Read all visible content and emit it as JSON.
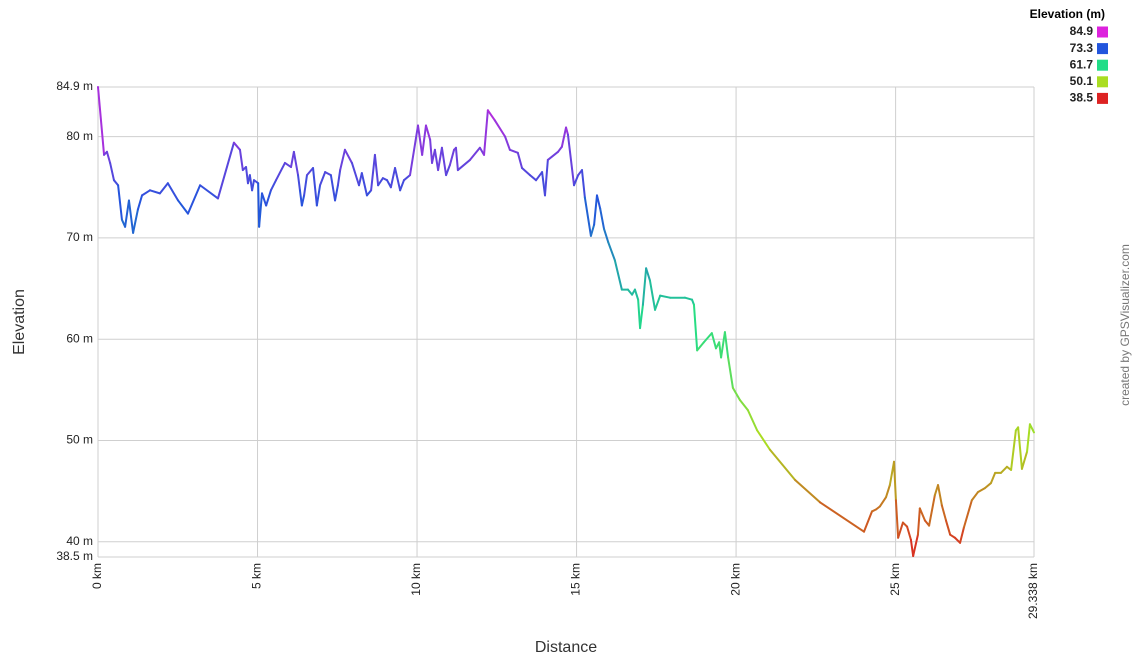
{
  "chart_data": {
    "type": "line",
    "x_label": "Distance",
    "y_label": "Elevation",
    "credit": "created by GPSVisualizer.com",
    "legend": {
      "title": "Elevation (m)",
      "values": [
        84.9,
        73.3,
        61.7,
        50.1,
        38.5
      ],
      "colors": [
        "#dd22dd",
        "#2255dd",
        "#22dd88",
        "#aadd22",
        "#dd2222"
      ]
    },
    "xlim": [
      0,
      29.338
    ],
    "ylim": [
      38.5,
      84.9
    ],
    "xticks": [
      {
        "value": 0,
        "label": "0 km"
      },
      {
        "value": 5,
        "label": "5 km"
      },
      {
        "value": 10,
        "label": "10 km"
      },
      {
        "value": 15,
        "label": "15 km"
      },
      {
        "value": 20,
        "label": "20 km"
      },
      {
        "value": 25,
        "label": "25 km"
      },
      {
        "value": 29.338,
        "label": "29.338 km"
      }
    ],
    "yticks": [
      {
        "value": 38.5,
        "label": "38.5 m"
      },
      {
        "value": 40,
        "label": "40 m"
      },
      {
        "value": 50,
        "label": "50 m"
      },
      {
        "value": 60,
        "label": "60 m"
      },
      {
        "value": 70,
        "label": "70 m"
      },
      {
        "value": 80,
        "label": "80 m"
      },
      {
        "value": 84.9,
        "label": "84.9 m"
      }
    ],
    "grid": true,
    "x": [
      0,
      0.19,
      0.28,
      0.38,
      0.5,
      0.63,
      0.75,
      0.85,
      0.97,
      1.1,
      1.25,
      1.38,
      1.63,
      1.94,
      2.19,
      2.51,
      2.82,
      3.2,
      3.76,
      4.26,
      4.45,
      4.54,
      4.64,
      4.7,
      4.76,
      4.83,
      4.89,
      5.02,
      5.05,
      5.14,
      5.27,
      5.42,
      5.58,
      5.86,
      6.05,
      6.14,
      6.27,
      6.33,
      6.39,
      6.46,
      6.55,
      6.74,
      6.86,
      6.96,
      7.12,
      7.3,
      7.43,
      7.52,
      7.59,
      7.74,
      7.96,
      8.18,
      8.27,
      8.43,
      8.56,
      8.68,
      8.78,
      8.93,
      9.06,
      9.18,
      9.31,
      9.47,
      9.59,
      9.78,
      10.03,
      10.16,
      10.28,
      10.41,
      10.47,
      10.56,
      10.66,
      10.78,
      10.91,
      11.03,
      11.16,
      11.22,
      11.28,
      11.66,
      11.97,
      12.1,
      12.22,
      12.44,
      12.76,
      12.91,
      13.16,
      13.29,
      13.54,
      13.73,
      13.92,
      14.01,
      14.1,
      14.42,
      14.54,
      14.67,
      14.73,
      14.92,
      15.05,
      15.17,
      15.26,
      15.45,
      15.55,
      15.64,
      15.74,
      15.86,
      15.99,
      16.2,
      16.42,
      16.61,
      16.74,
      16.83,
      16.93,
      16.99,
      17.08,
      17.18,
      17.3,
      17.46,
      17.62,
      17.93,
      18.4,
      18.62,
      18.68,
      18.78,
      18.99,
      19.24,
      19.37,
      19.47,
      19.53,
      19.65,
      19.75,
      19.9,
      20.12,
      20.37,
      20.66,
      21.06,
      21.85,
      22.63,
      24.01,
      24.26,
      24.39,
      24.51,
      24.7,
      24.82,
      24.95,
      25.01,
      25.08,
      25.23,
      25.36,
      25.48,
      25.55,
      25.7,
      25.76,
      25.92,
      26.05,
      26.23,
      26.33,
      26.45,
      26.58,
      26.71,
      26.86,
      27.02,
      27.14,
      27.39,
      27.58,
      27.8,
      27.99,
      28.12,
      28.3,
      28.49,
      28.62,
      28.77,
      28.84,
      28.96,
      29.12,
      29.21,
      29.338
    ],
    "series": [
      {
        "name": "Elevation",
        "values": [
          84.9,
          78.2,
          78.5,
          77.4,
          75.7,
          75.2,
          71.8,
          71.1,
          73.7,
          70.5,
          72.8,
          74.2,
          74.7,
          74.4,
          75.4,
          73.7,
          72.4,
          75.2,
          73.9,
          79.4,
          78.7,
          76.7,
          77.0,
          75.4,
          76.2,
          74.7,
          75.7,
          75.4,
          71.1,
          74.4,
          73.2,
          74.7,
          75.7,
          77.4,
          77.0,
          78.5,
          76.2,
          74.7,
          73.2,
          74.2,
          76.2,
          76.9,
          73.2,
          75.2,
          76.5,
          76.2,
          73.7,
          75.2,
          76.7,
          78.7,
          77.4,
          75.2,
          76.4,
          74.2,
          74.7,
          78.2,
          75.2,
          75.9,
          75.7,
          75.0,
          76.9,
          74.7,
          75.7,
          76.2,
          81.1,
          78.2,
          81.1,
          79.7,
          77.4,
          78.7,
          76.7,
          78.9,
          76.2,
          77.2,
          78.7,
          78.9,
          76.7,
          77.7,
          78.9,
          78.2,
          82.6,
          81.6,
          80.0,
          78.7,
          78.4,
          76.9,
          76.2,
          75.7,
          76.5,
          74.2,
          77.7,
          78.5,
          79.0,
          80.9,
          80.2,
          75.2,
          76.2,
          76.7,
          74.0,
          70.2,
          71.3,
          74.2,
          72.9,
          70.9,
          69.6,
          67.8,
          64.9,
          64.9,
          64.4,
          64.9,
          63.9,
          61.1,
          63.4,
          67.0,
          65.8,
          62.9,
          64.3,
          64.1,
          64.1,
          63.9,
          63.4,
          58.9,
          59.7,
          60.6,
          59.1,
          59.7,
          58.2,
          60.7,
          58.2,
          55.2,
          54.0,
          53.0,
          51.0,
          49.1,
          46.1,
          43.9,
          41.0,
          43.0,
          43.2,
          43.5,
          44.4,
          45.6,
          47.9,
          44.1,
          40.4,
          41.9,
          41.5,
          40.2,
          38.6,
          40.7,
          43.3,
          42.1,
          41.6,
          44.6,
          45.6,
          43.6,
          42.1,
          40.7,
          40.4,
          39.9,
          41.4,
          44.1,
          44.9,
          45.3,
          45.8,
          46.8,
          46.8,
          47.4,
          47.1,
          51.0,
          51.3,
          47.2,
          48.9,
          51.6,
          50.8
        ]
      }
    ]
  }
}
